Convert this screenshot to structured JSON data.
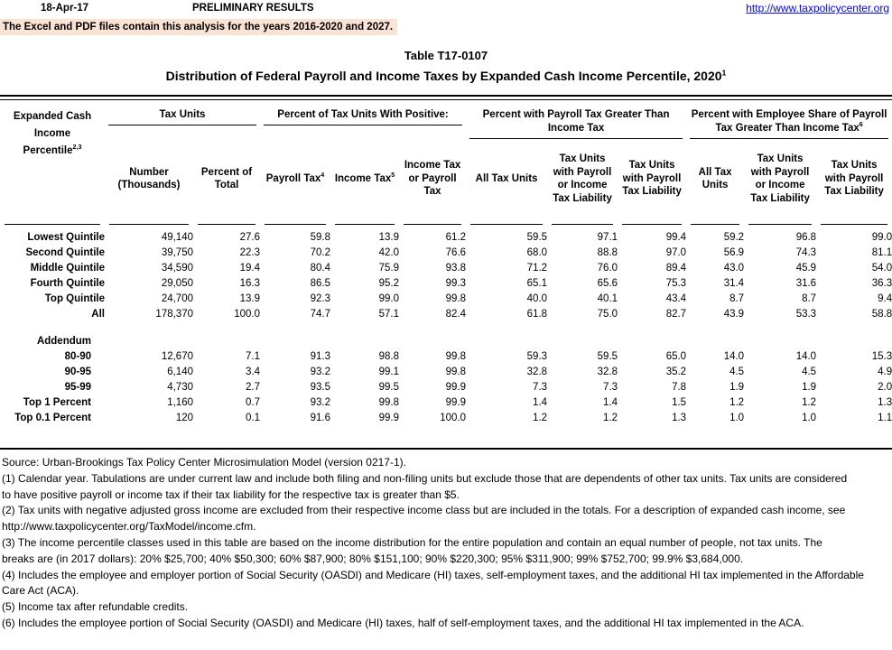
{
  "page": {
    "date": "18-Apr-17",
    "preliminary": "PRELIMINARY RESULTS",
    "url": "http://www.taxpolicycenter.org",
    "banner": "The Excel and PDF files contain this analysis for the years 2016-2020 and 2027.",
    "title1": "Table T17-0107",
    "title2": "Distribution of Federal Payroll and Income Taxes by Expanded Cash Income Percentile, 2020",
    "title2_sup": "1"
  },
  "table": {
    "row_header": {
      "line1": "Expanded Cash",
      "line2": "Income",
      "line3": "Percentile",
      "sup": "2,3"
    },
    "groups": [
      {
        "span": 2,
        "lines": [
          "Tax Units"
        ]
      },
      {
        "span": 3,
        "lines": [
          "Percent of Tax Units With Positive:"
        ]
      },
      {
        "span": 3,
        "lines": [
          "Percent with Payroll Tax Greater Than",
          "Income Tax"
        ]
      },
      {
        "span": 3,
        "lines": [
          "Percent with Employee Share of Payroll",
          "Tax Greater Than Income Tax"
        ],
        "sup": "6"
      }
    ],
    "columns": [
      {
        "label": "Number (Thousands)"
      },
      {
        "label": "Percent of Total"
      },
      {
        "label": "Payroll Tax",
        "sup": "4"
      },
      {
        "label": "Income Tax",
        "sup": "5"
      },
      {
        "label": "Income Tax or Payroll Tax"
      },
      {
        "label": "All Tax Units"
      },
      {
        "label": "Tax Units with Payroll or Income Tax Liability"
      },
      {
        "label": "Tax Units with Payroll Tax Liability"
      },
      {
        "label": "All Tax Units"
      },
      {
        "label": "Tax Units with Payroll or Income Tax Liability"
      },
      {
        "label": "Tax Units with Payroll Tax Liability"
      }
    ],
    "rows": [
      {
        "label": "Lowest Quintile",
        "values": [
          "49,140",
          "27.6",
          "59.8",
          "13.9",
          "61.2",
          "59.5",
          "97.1",
          "99.4",
          "59.2",
          "96.8",
          "99.0"
        ]
      },
      {
        "label": "Second Quintile",
        "values": [
          "39,750",
          "22.3",
          "70.2",
          "42.0",
          "76.6",
          "68.0",
          "88.8",
          "97.0",
          "56.9",
          "74.3",
          "81.1"
        ]
      },
      {
        "label": "Middle Quintile",
        "values": [
          "34,590",
          "19.4",
          "80.4",
          "75.9",
          "93.8",
          "71.2",
          "76.0",
          "89.4",
          "43.0",
          "45.9",
          "54.0"
        ]
      },
      {
        "label": "Fourth Quintile",
        "values": [
          "29,050",
          "16.3",
          "86.5",
          "95.2",
          "99.3",
          "65.1",
          "65.6",
          "75.3",
          "31.4",
          "31.6",
          "36.3"
        ]
      },
      {
        "label": "Top Quintile",
        "values": [
          "24,700",
          "13.9",
          "92.3",
          "99.0",
          "99.8",
          "40.0",
          "40.1",
          "43.4",
          "8.7",
          "8.7",
          "9.4"
        ]
      },
      {
        "label": "All",
        "values": [
          "178,370",
          "100.0",
          "74.7",
          "57.1",
          "82.4",
          "61.8",
          "75.0",
          "82.7",
          "43.9",
          "53.3",
          "58.8"
        ]
      }
    ],
    "addendum_label": "Addendum",
    "addendum_rows": [
      {
        "label": "80-90",
        "values": [
          "12,670",
          "7.1",
          "91.3",
          "98.8",
          "99.8",
          "59.3",
          "59.5",
          "65.0",
          "14.0",
          "14.0",
          "15.3"
        ]
      },
      {
        "label": "90-95",
        "values": [
          "6,140",
          "3.4",
          "93.2",
          "99.1",
          "99.8",
          "32.8",
          "32.8",
          "35.2",
          "4.5",
          "4.5",
          "4.9"
        ]
      },
      {
        "label": "95-99",
        "values": [
          "4,730",
          "2.7",
          "93.5",
          "99.5",
          "99.9",
          "7.3",
          "7.3",
          "7.8",
          "1.9",
          "1.9",
          "2.0"
        ]
      },
      {
        "label": "Top 1 Percent",
        "values": [
          "1,160",
          "0.7",
          "93.2",
          "99.8",
          "99.9",
          "1.4",
          "1.4",
          "1.5",
          "1.2",
          "1.2",
          "1.3"
        ]
      },
      {
        "label": "Top 0.1 Percent",
        "values": [
          "120",
          "0.1",
          "91.6",
          "99.9",
          "100.0",
          "1.2",
          "1.2",
          "1.3",
          "1.0",
          "1.0",
          "1.1"
        ]
      }
    ]
  },
  "notes": {
    "lines": [
      "Source: Urban-Brookings Tax Policy Center Microsimulation Model (version 0217-1).",
      "(1) Calendar year. Tabulations are under current law and include both filing and non-filing units but exclude those that are dependents of other tax units.  Tax units are considered",
      "to have positive payroll or income tax if their tax liability for the respective tax is greater than $5.",
      "(2) Tax units with negative adjusted gross income are excluded from their respective income class but are included in the totals. For a description of expanded cash income, see",
      "http://www.taxpolicycenter.org/TaxModel/income.cfm.",
      "(3) The income percentile classes used in this table are based on the income distribution for the entire population and contain an equal number of people, not tax units. The",
      "breaks are (in 2017 dollars): 20% $25,700; 40% $50,300; 60% $87,900; 80% $151,100; 90% $220,300; 95% $311,900; 99% $752,700; 99.9% $3,684,000.",
      "(4) Includes the employee and employer portion of Social Security (OASDI) and Medicare (HI) taxes, self-employment taxes, and the additional HI tax implemented in the Affordable",
      "Care Act (ACA).",
      "(5) Income tax after refundable credits.",
      "(6) Includes the employee portion of Social Security (OASDI) and Medicare (HI) taxes, half of self-employment taxes, and the additional HI tax implemented in the ACA."
    ]
  }
}
